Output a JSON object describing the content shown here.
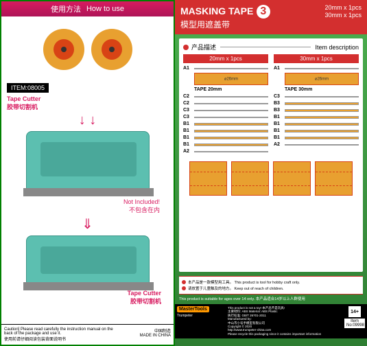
{
  "left": {
    "howto_cn": "使用方法",
    "howto_en": "How to use",
    "item_badge": "ITEM:08005",
    "tape_cutter_en": "Tape Cutter",
    "tape_cutter_cn": "胶带切割机",
    "not_included": "Not Included!",
    "not_included_cn": "不包含在内",
    "caution": "Caution] Please read carefully the instruction manual on the back of the package and use it.",
    "caution_cn_1": "使用前请仔细阅读包装背面说明书",
    "made_in": "中国制造",
    "made_in_en": "MADE IN CHINA"
  },
  "right": {
    "title": "MASKING TAPE",
    "title_num": "3",
    "title_sub": "模型用遮盖带",
    "spec1": "20mm x 1pcs",
    "spec2": "30mm x 1pcs",
    "desc_cn": "产品描述",
    "desc_en": "Item description",
    "col1_hdr": "20mm x 1pcs",
    "col2_hdr": "30mm x 1pcs",
    "dim1": "⌀26mm",
    "dim2": "⌀26mm",
    "tape1": "TAPE 20mm",
    "tape2": "TAPE 30mm",
    "parts1": [
      "A1",
      "",
      "C2",
      "C2",
      "C3",
      "C3",
      "B1",
      "B1",
      "B1",
      "B1",
      "A2"
    ],
    "parts2": [
      "A1",
      "",
      "C3",
      "B3",
      "B3",
      "B1",
      "B1",
      "B1",
      "B1",
      "A2"
    ],
    "warn1_cn": "本产品是一款模型用工具。",
    "warn1_en": "This product is tool for hobby craft only.",
    "warn2_cn": "请放置于儿童触及的地方。",
    "warn2_en": "Keep out of reach of children.",
    "suitable": "This product is suitable for ages over 14 only.",
    "suitable_cn": "本产品适合14岁以上人群使用",
    "logo": "MasterTools",
    "not_toy": "This product is not a toy!",
    "not_toy_cn": "本产品不是玩具!",
    "material": "Material: ABS Plastic",
    "material_cn": "主要材料: ABS",
    "std": "执行标准: GB/T 26701-2011",
    "mfr": "Manufactured by:",
    "addr": "中山市小号手模型有限公司",
    "copyright": "Copyright © 2020",
    "website": "http://www.trumpeter-china.com",
    "recycle": "Please recycle this packaging since it contains important information",
    "age": "14+",
    "item_no": "Item No:09998"
  },
  "colors": {
    "red": "#d32f2f",
    "pink": "#d81b60",
    "green1": "#4caf4f",
    "green2": "#2e7d32",
    "tape": "#e8a030",
    "spool": "#d84315",
    "dispenser": "#5cbfb0"
  }
}
